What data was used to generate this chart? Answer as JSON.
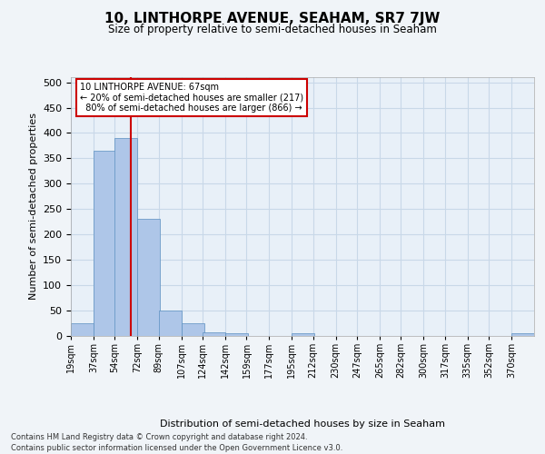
{
  "title": "10, LINTHORPE AVENUE, SEAHAM, SR7 7JW",
  "subtitle": "Size of property relative to semi-detached houses in Seaham",
  "xlabel": "Distribution of semi-detached houses by size in Seaham",
  "ylabel": "Number of semi-detached properties",
  "footnote1": "Contains HM Land Registry data © Crown copyright and database right 2024.",
  "footnote2": "Contains public sector information licensed under the Open Government Licence v3.0.",
  "property_label": "10 LINTHORPE AVENUE: 67sqm",
  "smaller_pct": "20% of semi-detached houses are smaller (217)",
  "larger_pct": "80% of semi-detached houses are larger (866)",
  "bin_labels": [
    "19sqm",
    "37sqm",
    "54sqm",
    "72sqm",
    "89sqm",
    "107sqm",
    "124sqm",
    "142sqm",
    "159sqm",
    "177sqm",
    "195sqm",
    "212sqm",
    "230sqm",
    "247sqm",
    "265sqm",
    "282sqm",
    "300sqm",
    "317sqm",
    "335sqm",
    "352sqm",
    "370sqm"
  ],
  "bin_edges": [
    19,
    37,
    54,
    72,
    89,
    107,
    124,
    142,
    159,
    177,
    195,
    212,
    230,
    247,
    265,
    282,
    300,
    317,
    335,
    352,
    370
  ],
  "bar_heights": [
    25,
    365,
    390,
    230,
    50,
    25,
    8,
    5,
    0,
    0,
    5,
    0,
    0,
    0,
    0,
    0,
    0,
    0,
    0,
    0,
    5
  ],
  "bar_color": "#aec6e8",
  "bar_edge_color": "#5a8fc0",
  "grid_color": "#c8d8e8",
  "vline_color": "#cc0000",
  "vline_x": 67,
  "annotation_box_color": "#cc0000",
  "ylim": [
    0,
    510
  ],
  "yticks": [
    0,
    50,
    100,
    150,
    200,
    250,
    300,
    350,
    400,
    450,
    500
  ],
  "bg_color": "#e8f0f8",
  "fig_bg_color": "#f0f4f8"
}
